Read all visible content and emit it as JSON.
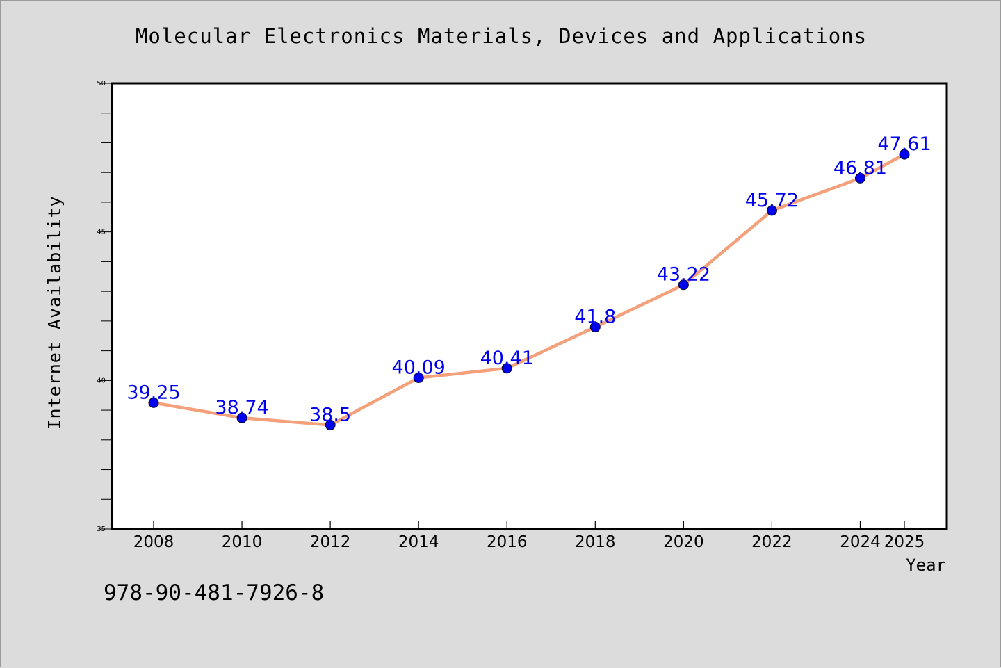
{
  "chart_data": {
    "type": "line",
    "title": "Molecular Electronics Materials, Devices and Applications",
    "xlabel": "Year",
    "ylabel": "Internet Availability",
    "x": [
      2008,
      2010,
      2012,
      2014,
      2016,
      2018,
      2020,
      2022,
      2024,
      2025
    ],
    "xticks": [
      "2008",
      "2010",
      "2012",
      "2014",
      "2016",
      "2018",
      "2020",
      "2022",
      "2024",
      "2025"
    ],
    "ylim": [
      35,
      50
    ],
    "yticks": [
      "35",
      "40",
      "45",
      "50"
    ],
    "grid": false,
    "series": [
      {
        "values": [
          39.25,
          38.74,
          38.5,
          40.09,
          40.41,
          41.8,
          43.22,
          45.72,
          46.81,
          47.61
        ],
        "labels": [
          "39.25",
          "38.74",
          "38.5",
          "40.09",
          "40.41",
          "41.8",
          "43.22",
          "45.72",
          "46.81",
          "47.61"
        ],
        "line_color": "#f4a07a",
        "marker_color": "#0000ee",
        "label_color": "#0000ee"
      }
    ]
  },
  "footer": {
    "isbn": "978-90-481-7926-8"
  }
}
